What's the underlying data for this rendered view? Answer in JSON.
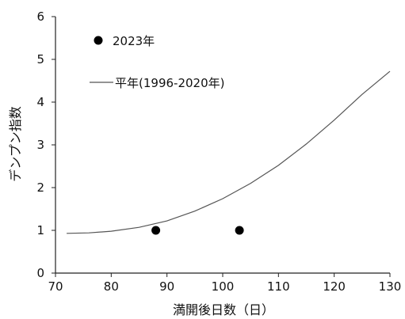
{
  "chart_data": {
    "type": "scatter",
    "xlabel": "満開後日数（日）",
    "ylabel": "デンプン指数",
    "xlim": [
      70,
      130
    ],
    "ylim": [
      0,
      6
    ],
    "x_ticks": [
      "70",
      "80",
      "90",
      "100",
      "110",
      "120",
      "130"
    ],
    "y_ticks": [
      "0",
      "1",
      "2",
      "3",
      "4",
      "5",
      "6"
    ],
    "grid": false,
    "legend": "top-left inside",
    "series": [
      {
        "name": "2023年",
        "kind": "points",
        "color": "#000000",
        "points": [
          {
            "x": 88,
            "y": 1.0
          },
          {
            "x": 103,
            "y": 1.0
          }
        ]
      },
      {
        "name": "平年(1996-2020年)",
        "kind": "line",
        "color": "#555555",
        "points": [
          {
            "x": 72,
            "y": 0.93
          },
          {
            "x": 76,
            "y": 0.94
          },
          {
            "x": 80,
            "y": 0.98
          },
          {
            "x": 85,
            "y": 1.07
          },
          {
            "x": 90,
            "y": 1.22
          },
          {
            "x": 95,
            "y": 1.45
          },
          {
            "x": 100,
            "y": 1.74
          },
          {
            "x": 105,
            "y": 2.1
          },
          {
            "x": 110,
            "y": 2.52
          },
          {
            "x": 115,
            "y": 3.02
          },
          {
            "x": 120,
            "y": 3.58
          },
          {
            "x": 125,
            "y": 4.18
          },
          {
            "x": 130,
            "y": 4.72
          }
        ]
      }
    ]
  }
}
